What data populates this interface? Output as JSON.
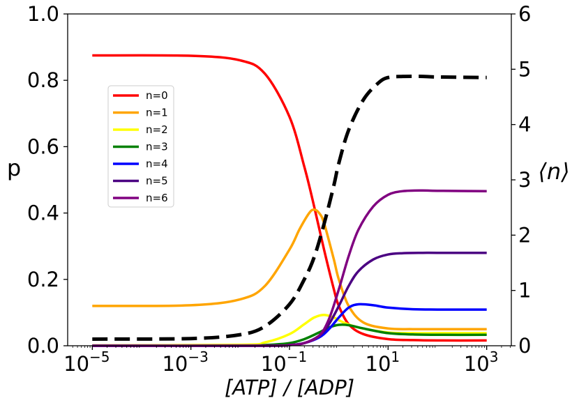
{
  "chart_data": {
    "type": "line",
    "xscale": "log",
    "xlim_log10": [
      -5.5,
      3.5
    ],
    "ylim_left": [
      0,
      1
    ],
    "ylim_right": [
      0,
      6
    ],
    "xlabel": "[ATP] / [ADP]",
    "ylabel_left": "p",
    "ylabel_right": "⟨n⟩",
    "xticks": [
      {
        "exp": -5,
        "base": "10",
        "sup": "−5"
      },
      {
        "exp": -3,
        "base": "10",
        "sup": "−3"
      },
      {
        "exp": -1,
        "base": "10",
        "sup": "−1"
      },
      {
        "exp": 1,
        "base": "10",
        "sup": "1"
      },
      {
        "exp": 3,
        "base": "10",
        "sup": "3"
      }
    ],
    "yticks_left": [
      "0.0",
      "0.2",
      "0.4",
      "0.6",
      "0.8",
      "1.0"
    ],
    "yticks_right": [
      "0",
      "1",
      "2",
      "3",
      "4",
      "5",
      "6"
    ],
    "legend": {
      "position": "upper-left"
    },
    "series": [
      {
        "name": "n=0",
        "color": "#ff0000",
        "axis": "left",
        "dash": false,
        "x_log10": [
          -5,
          -3,
          -2,
          -1.5,
          -1,
          -0.7,
          -0.5,
          -0.3,
          -0.1,
          0,
          0.2,
          0.5,
          1,
          1.5,
          2,
          3
        ],
        "y": [
          0.875,
          0.874,
          0.86,
          0.82,
          0.69,
          0.54,
          0.42,
          0.29,
          0.17,
          0.12,
          0.065,
          0.035,
          0.02,
          0.017,
          0.016,
          0.016
        ]
      },
      {
        "name": "n=1",
        "color": "#ffa500",
        "axis": "left",
        "dash": false,
        "x_log10": [
          -5,
          -3,
          -2,
          -1.5,
          -1,
          -0.8,
          -0.6,
          -0.5,
          -0.4,
          -0.3,
          -0.1,
          0,
          0.2,
          0.5,
          1,
          1.5,
          2,
          3
        ],
        "y": [
          0.12,
          0.122,
          0.14,
          0.18,
          0.29,
          0.35,
          0.4,
          0.41,
          0.4,
          0.37,
          0.26,
          0.2,
          0.12,
          0.07,
          0.052,
          0.05,
          0.05,
          0.05
        ]
      },
      {
        "name": "n=2",
        "color": "#ffff00",
        "axis": "left",
        "dash": false,
        "x_log10": [
          -5,
          -2,
          -1.5,
          -1,
          -0.7,
          -0.5,
          -0.3,
          -0.1,
          0.1,
          0.4,
          1,
          1.5,
          2,
          3
        ],
        "y": [
          0.001,
          0.003,
          0.01,
          0.035,
          0.065,
          0.085,
          0.093,
          0.085,
          0.07,
          0.055,
          0.04,
          0.038,
          0.038,
          0.038
        ]
      },
      {
        "name": "n=3",
        "color": "#008000",
        "axis": "left",
        "dash": false,
        "x_log10": [
          -5,
          -2,
          -1.5,
          -1,
          -0.7,
          -0.4,
          -0.2,
          0,
          0.2,
          0.5,
          1,
          1.5,
          2,
          3
        ],
        "y": [
          0.0,
          0.0,
          0.002,
          0.008,
          0.02,
          0.04,
          0.055,
          0.063,
          0.062,
          0.052,
          0.038,
          0.034,
          0.033,
          0.033
        ]
      },
      {
        "name": "n=4",
        "color": "#0000ff",
        "axis": "left",
        "dash": false,
        "x_log10": [
          -5,
          -1.5,
          -1,
          -0.7,
          -0.4,
          -0.2,
          0,
          0.2,
          0.4,
          0.7,
          1,
          1.5,
          2,
          3
        ],
        "y": [
          0.0,
          0.0,
          0.002,
          0.008,
          0.025,
          0.05,
          0.085,
          0.115,
          0.125,
          0.122,
          0.115,
          0.11,
          0.109,
          0.109
        ]
      },
      {
        "name": "n=5",
        "color": "#4b0082",
        "axis": "left",
        "dash": false,
        "x_log10": [
          -5,
          -1.5,
          -1,
          -0.7,
          -0.4,
          -0.2,
          0,
          0.2,
          0.4,
          0.7,
          1,
          1.3,
          1.7,
          2,
          3
        ],
        "y": [
          0.0,
          0.0,
          0.002,
          0.008,
          0.03,
          0.065,
          0.12,
          0.18,
          0.225,
          0.26,
          0.275,
          0.279,
          0.28,
          0.28,
          0.28
        ]
      },
      {
        "name": "n=6",
        "color": "#800080",
        "axis": "left",
        "dash": false,
        "x_log10": [
          -5,
          -1.5,
          -1,
          -0.7,
          -0.4,
          -0.2,
          0,
          0.2,
          0.4,
          0.7,
          1,
          1.3,
          1.7,
          2,
          3
        ],
        "y": [
          0.0,
          0.0,
          0.002,
          0.008,
          0.03,
          0.08,
          0.17,
          0.27,
          0.35,
          0.42,
          0.455,
          0.466,
          0.468,
          0.467,
          0.466
        ]
      },
      {
        "name": "<n>",
        "color": "#000000",
        "axis": "right",
        "dash": true,
        "x_log10": [
          -5,
          -3,
          -2,
          -1.5,
          -1,
          -0.7,
          -0.5,
          -0.3,
          -0.1,
          0,
          0.2,
          0.5,
          0.8,
          1,
          1.3,
          1.7,
          2,
          3
        ],
        "y": [
          0.12,
          0.13,
          0.2,
          0.35,
          0.75,
          1.2,
          1.6,
          2.2,
          2.9,
          3.3,
          3.9,
          4.45,
          4.75,
          4.85,
          4.87,
          4.87,
          4.86,
          4.85
        ]
      }
    ]
  }
}
